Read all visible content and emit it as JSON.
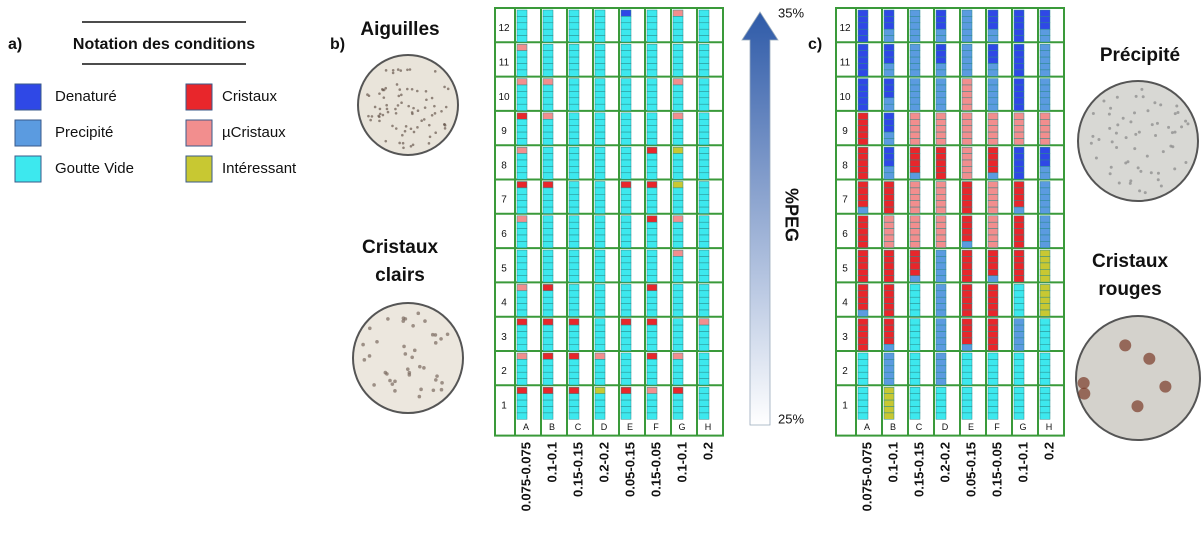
{
  "panel_a": {
    "label": "a)",
    "title": "Notation des conditions",
    "legend": [
      {
        "name": "Denaturé",
        "color": "#2f48e6"
      },
      {
        "name": "Precipité",
        "color": "#5b9be0"
      },
      {
        "name": "Goutte Vide",
        "color": "#3de8ee"
      },
      {
        "name": "Cristaux",
        "color": "#e8262b"
      },
      {
        "name": "µCristaux",
        "color": "#f28e8e"
      },
      {
        "name": "Intéressant",
        "color": "#c8c832"
      }
    ]
  },
  "panel_b": {
    "label": "b)",
    "image_top": [
      "Aiguilles"
    ],
    "image_bottom": [
      "Cristaux",
      "clairs"
    ]
  },
  "panel_c": {
    "label": "c)",
    "image_top": [
      "Précipité"
    ],
    "image_bottom": [
      "Cristaux",
      "rouges"
    ]
  },
  "plate": {
    "rows": [
      "1",
      "2",
      "3",
      "4",
      "5",
      "6",
      "7",
      "8",
      "9",
      "10",
      "11",
      "12"
    ],
    "columns": [
      "A",
      "B",
      "C",
      "D",
      "E",
      "F",
      "G",
      "H"
    ],
    "conditions": [
      "0.075-0.075",
      "0.1-0.1",
      "0.15-0.15",
      "0.2-0.2",
      "0.05-0.15",
      "0.15-0.05",
      "0.1-0.1",
      "0.2"
    ]
  },
  "arrow": {
    "top": "35%",
    "bottom": "25%",
    "label": "%PEG"
  }
}
